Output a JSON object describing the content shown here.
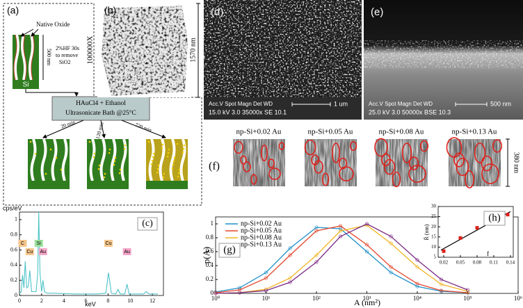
{
  "panel_a": {
    "label": "(a)",
    "native_oxide": "Native Oxide",
    "thickness": "500 nm",
    "hf_step": [
      "2%HF 30s",
      "to remove",
      "SiO2"
    ],
    "substrate": "Si",
    "bath": [
      "HAuCl4 + Ethanol",
      "Ultrasonicate Bath @25°C"
    ],
    "times": [
      "20 min",
      "120 min",
      "720 min"
    ]
  },
  "panel_b": {
    "label": "(b)",
    "magnification": "100000X",
    "height": "1570 nm"
  },
  "panel_d": {
    "label": "(d)",
    "header": "Acc.V Spot Magn   Det WD",
    "settings": "15.0 kV 3.0 35000x SE 10.1",
    "scale": "1 um"
  },
  "panel_e": {
    "label": "(e)",
    "header": "Acc.V Spot Magn   Det WD",
    "settings": "25.0 kV 3.0 50000x BSE 10.3",
    "scale": "500 nm"
  },
  "panel_f": {
    "label": "(f)",
    "samples": [
      "np-Si+0.02 Au",
      "np-Si+0.05 Au",
      "np-Si+0.08 Au",
      "np-Si+0.13 Au"
    ],
    "scale": "380 nm"
  },
  "chart_data": [
    {
      "type": "line",
      "label": "(c)",
      "ylabel": "cps/eV",
      "xlabel": "keV",
      "color": "#4fc3c8",
      "x": [
        0,
        0.15,
        0.28,
        0.4,
        0.52,
        0.65,
        0.8,
        0.93,
        1.1,
        1.5,
        1.65,
        1.74,
        1.85,
        2.0,
        2.12,
        2.25,
        2.5,
        3,
        5,
        7,
        7.8,
        8.04,
        8.3,
        8.7,
        8.9,
        9.1,
        9.5,
        9.71,
        9.9,
        11.2,
        11.44,
        11.7,
        12.5
      ],
      "values": [
        0.02,
        0.05,
        0.27,
        0.1,
        0.45,
        0.1,
        0.12,
        0.33,
        0.05,
        0.05,
        0.3,
        1.1,
        0.3,
        0.05,
        0.2,
        0.05,
        0.03,
        0.03,
        0.02,
        0.02,
        0.03,
        0.3,
        0.03,
        0.02,
        0.08,
        0.02,
        0.02,
        0.15,
        0.02,
        0.02,
        0.05,
        0.02,
        0.02
      ],
      "annotations": [
        {
          "text": "C",
          "x": 0.28,
          "color": "#f6c68c"
        },
        {
          "text": "Cu",
          "x": 0.93,
          "color": "#f6c68c"
        },
        {
          "text": "Si",
          "x": 1.74,
          "color": "#9be09b"
        },
        {
          "text": "Au",
          "x": 2.12,
          "color": "#f4a6c8"
        },
        {
          "text": "Cu",
          "x": 8.04,
          "color": "#f6c68c"
        },
        {
          "text": "Au",
          "x": 9.71,
          "color": "#f4a6c8"
        }
      ],
      "xlim": [
        0,
        13
      ],
      "ylim": [
        0,
        1.1
      ],
      "xticks": [
        0,
        2,
        4,
        6,
        8,
        10,
        12
      ],
      "yticks": [
        0,
        0.2,
        0.4,
        0.6,
        0.8,
        1
      ]
    },
    {
      "type": "line",
      "label": "(g)",
      "xlabel": "A (nm²)",
      "ylabel": "p(A)",
      "log_x": true,
      "legend": "upper left",
      "x": [
        1,
        3,
        10,
        30,
        100,
        300,
        1000,
        3000,
        10000,
        30000,
        100000
      ],
      "series": [
        {
          "name": "np-Si+0.02 Au",
          "color": "#1f8fc9",
          "values": [
            0.02,
            0.08,
            0.3,
            0.65,
            0.95,
            0.93,
            0.6,
            0.3,
            0.1,
            0.03,
            0.01
          ]
        },
        {
          "name": "np-Si+0.05 Au",
          "color": "#e2452b",
          "values": [
            0.01,
            0.05,
            0.22,
            0.55,
            0.9,
            0.97,
            0.7,
            0.38,
            0.14,
            0.04,
            0.01
          ]
        },
        {
          "name": "np-Si+0.08 Au",
          "color": "#f0b323",
          "values": [
            0,
            0.01,
            0.06,
            0.22,
            0.55,
            0.9,
            0.98,
            0.72,
            0.38,
            0.13,
            0.03
          ]
        },
        {
          "name": "np-Si+0.13 Au",
          "color": "#7c2a84",
          "values": [
            0,
            0.01,
            0.04,
            0.16,
            0.45,
            0.82,
            1,
            0.82,
            0.48,
            0.2,
            0.05
          ]
        }
      ],
      "xlim": [
        1,
        1000000
      ],
      "ylim": [
        0,
        1.1
      ],
      "xticks": [
        {
          "value": 1,
          "label": "10⁰"
        },
        {
          "value": 10,
          "label": "10¹"
        },
        {
          "value": 100,
          "label": "10²"
        },
        {
          "value": 1000,
          "label": "10³"
        },
        {
          "value": 10000,
          "label": "10⁴"
        },
        {
          "value": 100000,
          "label": "10⁵"
        },
        {
          "value": 1000000,
          "label": "10⁶"
        }
      ],
      "yticks": [
        0,
        0.2,
        0.4,
        0.6,
        0.8,
        1
      ]
    },
    {
      "type": "scatter",
      "label": "(h)",
      "xlabel": "f",
      "ylabel": "R̄ (nm)",
      "color": "#e0201b",
      "x": [
        0.02,
        0.05,
        0.08,
        0.135
      ],
      "values": [
        8,
        14.5,
        19.5,
        26
      ],
      "fit": {
        "x": [
          0.015,
          0.14
        ],
        "values": [
          8.5,
          27.5
        ],
        "color": "#000000"
      },
      "xlim": [
        0.01,
        0.145
      ],
      "ylim": [
        5,
        30
      ],
      "xticks": [
        0.02,
        0.05,
        0.08,
        0.11,
        0.14
      ],
      "yticks": [
        5,
        10,
        15,
        20,
        25,
        30
      ]
    }
  ]
}
